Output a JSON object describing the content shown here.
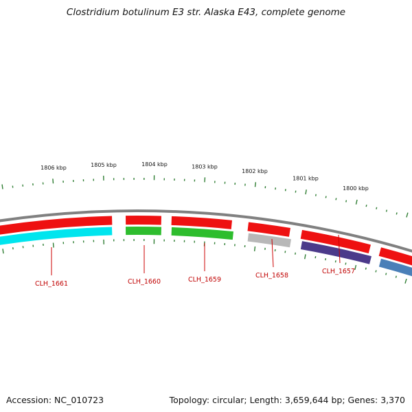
{
  "title": "Clostridium botulinum E3 str. Alaska E43, complete genome",
  "footer": {
    "accession": "Accession: NC_010723",
    "stats": "Topology: circular; Length: 3,659,644 bp; Genes: 3,370"
  },
  "scale_labels": [
    "1806 kbp",
    "1805 kbp",
    "1804 kbp",
    "1803 kbp",
    "1802 kbp",
    "1801 kbp",
    "1800 kbp"
  ],
  "colors": {
    "backbone": "#808080",
    "cds": "#ee1111",
    "gene_label": "#c00000",
    "tick": "#2e7d32",
    "gene_line": "#cc0000"
  },
  "genes": [
    {
      "label": "CLH_1661",
      "color": "#00e5ee"
    },
    {
      "label": "CLH_1660",
      "color": "#2ebd2e"
    },
    {
      "label": "CLH_1659",
      "color": "#2ebd2e"
    },
    {
      "label": "CLH_1658",
      "color": "#b8b8b8"
    },
    {
      "label": "CLH_1657",
      "color": "#4b3a8a"
    },
    {
      "label": "",
      "color": "#4a7fb8"
    }
  ]
}
